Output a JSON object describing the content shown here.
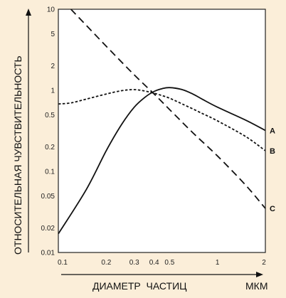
{
  "chart_data": {
    "type": "line",
    "xlabel": "ДИАМЕТР  ЧАСТИЦ",
    "xunit": "МКМ",
    "ylabel": "ОТНОСИТЕЛЬНАЯ ЧУВСТВИТЕЛЬНОСТЬ",
    "x_scale": "log",
    "y_scale": "log",
    "xlim": [
      0.1,
      2
    ],
    "ylim": [
      0.01,
      10
    ],
    "x_ticks": [
      {
        "value": 0.1,
        "label": "0.1"
      },
      {
        "value": 0.2,
        "label": "0.2"
      },
      {
        "value": 0.3,
        "label": "0.3"
      },
      {
        "value": 0.4,
        "label": "0.4"
      },
      {
        "value": 0.5,
        "label": "0.5"
      },
      {
        "value": 1,
        "label": "1"
      },
      {
        "value": 2,
        "label": "2"
      }
    ],
    "y_ticks": [
      {
        "value": 10,
        "label": "10"
      },
      {
        "value": 5,
        "label": "5"
      },
      {
        "value": 2,
        "label": "2"
      },
      {
        "value": 1,
        "label": "1"
      },
      {
        "value": 0.5,
        "label": "0.5"
      },
      {
        "value": 0.2,
        "label": "0.2"
      },
      {
        "value": 0.1,
        "label": "0.1"
      },
      {
        "value": 0.05,
        "label": "0.05"
      },
      {
        "value": 0.02,
        "label": "0.02"
      },
      {
        "value": 0.01,
        "label": "0.01"
      }
    ],
    "grid": false,
    "series": [
      {
        "name": "A",
        "style": "solid",
        "points": [
          [
            0.1,
            0.017
          ],
          [
            0.15,
            0.06
          ],
          [
            0.2,
            0.18
          ],
          [
            0.25,
            0.38
          ],
          [
            0.3,
            0.62
          ],
          [
            0.35,
            0.82
          ],
          [
            0.4,
            0.97
          ],
          [
            0.45,
            1.05
          ],
          [
            0.5,
            1.08
          ],
          [
            0.6,
            1.02
          ],
          [
            0.7,
            0.9
          ],
          [
            0.8,
            0.78
          ],
          [
            1.0,
            0.62
          ],
          [
            1.5,
            0.43
          ],
          [
            2.0,
            0.32
          ]
        ]
      },
      {
        "name": "B",
        "style": "dotted",
        "points": [
          [
            0.1,
            0.68
          ],
          [
            0.12,
            0.7
          ],
          [
            0.15,
            0.78
          ],
          [
            0.2,
            0.9
          ],
          [
            0.25,
            0.99
          ],
          [
            0.3,
            1.02
          ],
          [
            0.35,
            0.98
          ],
          [
            0.4,
            0.92
          ],
          [
            0.45,
            0.86
          ],
          [
            0.5,
            0.8
          ],
          [
            0.6,
            0.68
          ],
          [
            0.8,
            0.52
          ],
          [
            1.0,
            0.42
          ],
          [
            1.5,
            0.27
          ],
          [
            2.0,
            0.18
          ]
        ]
      },
      {
        "name": "C",
        "style": "dashed",
        "points": [
          [
            0.12,
            10
          ],
          [
            0.2,
            3.5
          ],
          [
            0.3,
            1.55
          ],
          [
            0.4,
            0.9
          ],
          [
            0.5,
            0.58
          ],
          [
            0.7,
            0.3
          ],
          [
            1.0,
            0.155
          ],
          [
            1.5,
            0.068
          ],
          [
            2.0,
            0.035
          ]
        ]
      }
    ]
  },
  "colors": {
    "background": "#fbeed9",
    "plot_area": "#ffffff",
    "lines": "#111111"
  }
}
